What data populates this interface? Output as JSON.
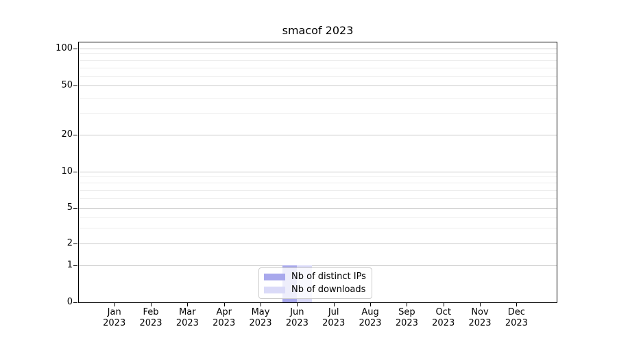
{
  "title": "smacof 2023",
  "chart_data": {
    "type": "bar",
    "title": "smacof 2023",
    "categories": [
      "Jan 2023",
      "Feb 2023",
      "Mar 2023",
      "Apr 2023",
      "May 2023",
      "Jun 2023",
      "Jul 2023",
      "Aug 2023",
      "Sep 2023",
      "Oct 2023",
      "Nov 2023",
      "Dec 2023"
    ],
    "series": [
      {
        "name": "Nb of distinct IPs",
        "color": "#a8a8ec",
        "values": [
          0,
          0,
          0,
          0,
          0,
          1,
          0,
          0,
          0,
          0,
          0,
          0
        ]
      },
      {
        "name": "Nb of downloads",
        "color": "#dadaf8",
        "values": [
          0,
          0,
          0,
          0,
          0,
          1,
          0,
          0,
          0,
          0,
          0,
          0
        ]
      }
    ],
    "xlabel": "",
    "ylabel": "",
    "yaxis": {
      "scale": "symlog",
      "range": [
        0,
        100
      ],
      "ticks": [
        0,
        1,
        2,
        5,
        10,
        20,
        50,
        100
      ],
      "minor_ticks": [
        3,
        4,
        6,
        7,
        8,
        9,
        30,
        40,
        60,
        70,
        80,
        90
      ]
    },
    "grid": true,
    "legend": {
      "position": "lower center",
      "entries": [
        "Nb of distinct IPs",
        "Nb of downloads"
      ]
    }
  }
}
